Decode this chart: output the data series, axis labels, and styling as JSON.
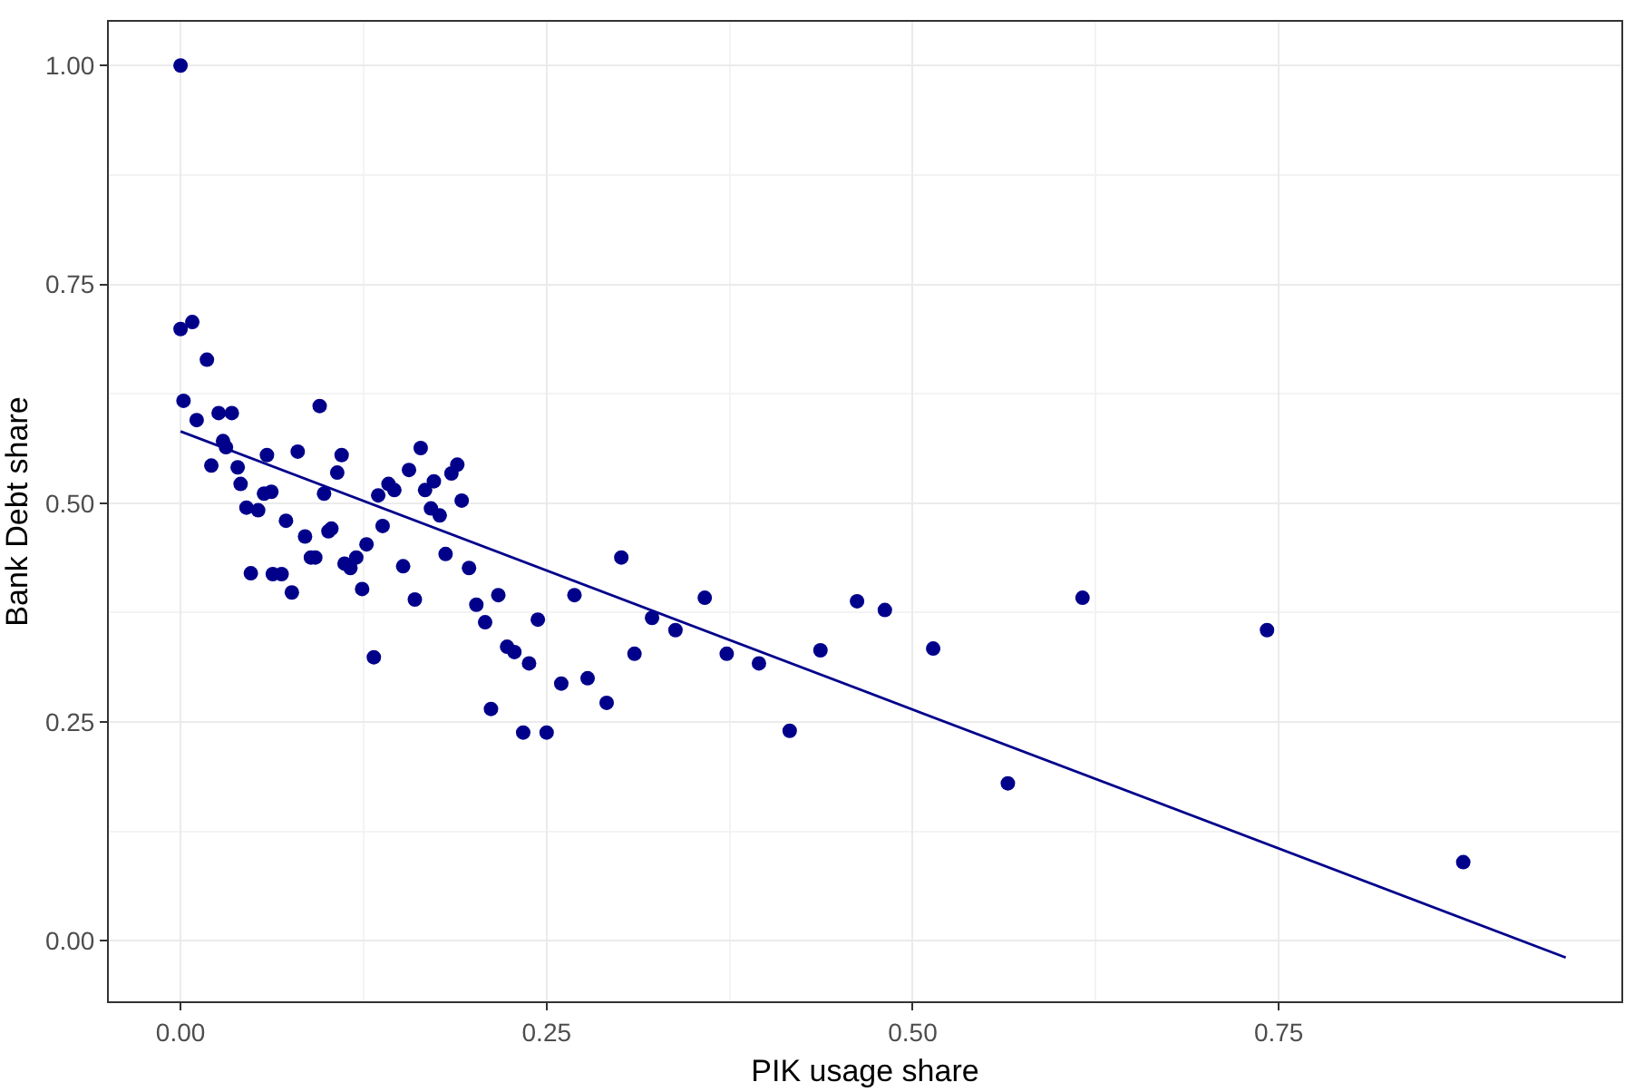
{
  "chart_data": {
    "type": "scatter",
    "xlabel": "PIK usage share",
    "ylabel": "Bank Debt share",
    "xlim": [
      -0.049,
      0.984
    ],
    "ylim": [
      -0.069,
      1.05
    ],
    "xticks": [
      {
        "value": 0,
        "label": "0.00"
      },
      0.25,
      {
        "value": 0.5,
        "label": "0.50"
      },
      0.75
    ],
    "yticks": [
      {
        "value": 0,
        "label": "0.00"
      },
      0.25,
      {
        "value": 0.5,
        "label": "0.50"
      },
      0.75,
      {
        "value": 1,
        "label": "1.00"
      }
    ],
    "grid": true,
    "series": [
      {
        "marker": "circle",
        "color": "#00008b",
        "x": [
          0.0,
          0.0,
          0.008,
          0.018,
          0.002,
          0.011,
          0.026,
          0.035,
          0.095,
          0.029,
          0.031,
          0.021,
          0.039,
          0.041,
          0.059,
          0.08,
          0.11,
          0.107,
          0.098,
          0.057,
          0.062,
          0.045,
          0.053,
          0.072,
          0.085,
          0.101,
          0.103,
          0.089,
          0.092,
          0.112,
          0.116,
          0.12,
          0.127,
          0.138,
          0.135,
          0.142,
          0.146,
          0.156,
          0.164,
          0.167,
          0.173,
          0.171,
          0.177,
          0.185,
          0.189,
          0.192,
          0.181,
          0.152,
          0.124,
          0.16,
          0.197,
          0.202,
          0.208,
          0.217,
          0.048,
          0.063,
          0.069,
          0.076,
          0.132,
          0.212,
          0.223,
          0.228,
          0.238,
          0.244,
          0.234,
          0.25,
          0.26,
          0.278,
          0.291,
          0.269,
          0.301,
          0.31,
          0.322,
          0.338,
          0.358,
          0.373,
          0.395,
          0.416,
          0.437,
          0.462,
          0.481,
          0.514,
          0.565,
          0.616,
          0.742,
          0.876
        ],
        "values": [
          1.0,
          0.699,
          0.707,
          0.664,
          0.617,
          0.595,
          0.603,
          0.603,
          0.611,
          0.571,
          0.564,
          0.543,
          0.541,
          0.522,
          0.555,
          0.559,
          0.555,
          0.535,
          0.511,
          0.511,
          0.513,
          0.495,
          0.492,
          0.48,
          0.462,
          0.468,
          0.471,
          0.438,
          0.438,
          0.431,
          0.426,
          0.438,
          0.453,
          0.474,
          0.509,
          0.522,
          0.515,
          0.538,
          0.563,
          0.515,
          0.525,
          0.494,
          0.486,
          0.534,
          0.544,
          0.503,
          0.442,
          0.428,
          0.402,
          0.39,
          0.426,
          0.384,
          0.364,
          0.395,
          0.42,
          0.419,
          0.419,
          0.398,
          0.324,
          0.265,
          0.336,
          0.33,
          0.317,
          0.367,
          0.238,
          0.238,
          0.294,
          0.3,
          0.272,
          0.395,
          0.438,
          0.328,
          0.369,
          0.355,
          0.392,
          0.328,
          0.317,
          0.24,
          0.332,
          0.388,
          0.378,
          0.334,
          0.18,
          0.392,
          0.355,
          0.09
        ]
      },
      {
        "type": "line",
        "color": "#00008b",
        "x": [
          0.0,
          0.946
        ],
        "values": [
          0.582,
          -0.019
        ]
      }
    ]
  }
}
